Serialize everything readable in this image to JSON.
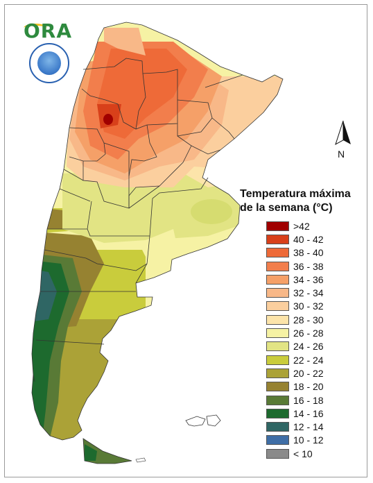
{
  "logo": {
    "text": "ORA"
  },
  "north": {
    "label": "N"
  },
  "legend": {
    "title_line1": "Temperatura máxima",
    "title_line2": "de la semana (°C)",
    "items": [
      {
        "label": ">42",
        "color": "#a00000"
      },
      {
        "label": "40 - 42",
        "color": "#d8401a"
      },
      {
        "label": "38 - 40",
        "color": "#ee6a38"
      },
      {
        "label": "36 - 38",
        "color": "#f27e4c"
      },
      {
        "label": "34 - 36",
        "color": "#f5a068"
      },
      {
        "label": "32 - 34",
        "color": "#f8b888"
      },
      {
        "label": "30 - 32",
        "color": "#fbcf9e"
      },
      {
        "label": "28 - 30",
        "color": "#fce4aa"
      },
      {
        "label": "26 - 28",
        "color": "#f6f2a4"
      },
      {
        "label": "24 - 26",
        "color": "#e2e484"
      },
      {
        "label": "22 - 24",
        "color": "#c9cc3c"
      },
      {
        "label": "20 - 22",
        "color": "#aba237"
      },
      {
        "label": "18 - 20",
        "color": "#968231"
      },
      {
        "label": "16 - 18",
        "color": "#597a36"
      },
      {
        "label": "14 - 16",
        "color": "#1d6a2e"
      },
      {
        "label": "12 - 14",
        "color": "#2f6664"
      },
      {
        "label": "10 - 12",
        "color": "#3f6ea6"
      },
      {
        "label": "< 10",
        "color": "#8a8a8a"
      }
    ]
  }
}
